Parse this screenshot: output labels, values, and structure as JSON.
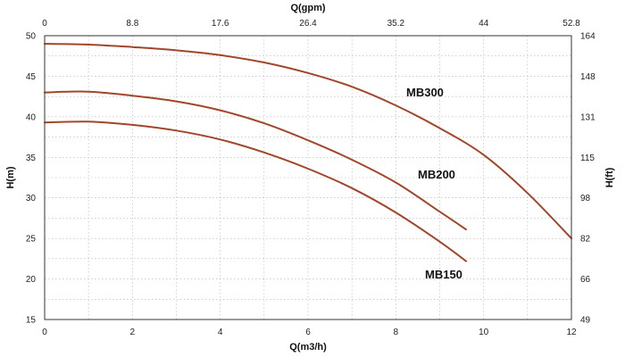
{
  "chart_data": {
    "type": "line",
    "xlabel": "Q(m3/h)",
    "ylabel": "H(m)",
    "x2label": "Q(gpm)",
    "y2label": "H(ft)",
    "xlim": [
      0,
      12
    ],
    "ylim": [
      15,
      50
    ],
    "xticks": [
      "0",
      "2",
      "4",
      "6",
      "8",
      "10",
      "12"
    ],
    "yticks": [
      "15",
      "20",
      "25",
      "30",
      "35",
      "40",
      "45",
      "50"
    ],
    "x2ticks": [
      "0",
      "8.8",
      "17.6",
      "26.4",
      "35.2",
      "44",
      "52.8"
    ],
    "y2ticks": [
      "49",
      "66",
      "82",
      "98",
      "115",
      "131",
      "148",
      "164"
    ],
    "grid": true,
    "line_color": "#a2462a",
    "series": [
      {
        "name": "MB300",
        "x": [
          0,
          1,
          2,
          3,
          4,
          5,
          6,
          7,
          8,
          9,
          10,
          11,
          12
        ],
        "y": [
          49.0,
          48.9,
          48.6,
          48.2,
          47.6,
          46.7,
          45.4,
          43.7,
          41.4,
          38.6,
          35.3,
          30.6,
          25.0
        ]
      },
      {
        "name": "MB200",
        "x": [
          0,
          1,
          2,
          3,
          4,
          5,
          6,
          7,
          8,
          9,
          9.6
        ],
        "y": [
          43.0,
          43.1,
          42.6,
          41.9,
          40.8,
          39.2,
          37.1,
          34.7,
          31.9,
          28.3,
          26.1
        ]
      },
      {
        "name": "MB150",
        "x": [
          0,
          1,
          2,
          3,
          4,
          5,
          6,
          7,
          8,
          9,
          9.6
        ],
        "y": [
          39.3,
          39.4,
          39.0,
          38.3,
          37.2,
          35.6,
          33.6,
          31.2,
          28.2,
          24.6,
          22.2
        ]
      }
    ]
  }
}
